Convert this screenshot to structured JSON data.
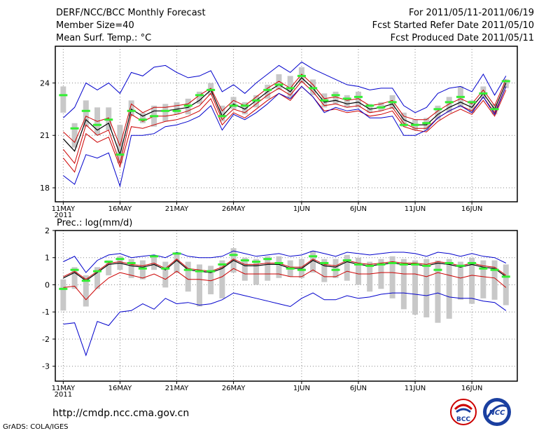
{
  "header": {
    "title": "DERF/NCC/BCC Monthly Forecast",
    "member_size": "Member Size=40",
    "variable": "Mean Surf. Temp.: °C",
    "for_period": "For 2011/05/11-2011/06/19",
    "fcst_started": "Fcst Started Refer Date 2011/05/10",
    "fcst_produced": "Fcst Produced Date 2011/05/11"
  },
  "footer": {
    "url": "http://cmdp.ncc.cma.gov.cn",
    "credit": "GrADS: COLA/IGES",
    "logo_bcc": "BCC",
    "logo_ncc": "NCC"
  },
  "colors": {
    "ensemble_mean": "#000000",
    "spread_inner": "#cc0000",
    "envelope_outer": "#0000cc",
    "observed_bar": "#33ee33",
    "iqr_box": "#c8c8c8",
    "grid": "#888888"
  },
  "chart_data": [
    {
      "type": "line",
      "title": "Mean Surf. Temp.: °C",
      "x_tick_labels": [
        "11MAY",
        "16MAY",
        "21MAY",
        "26MAY",
        "1JUN",
        "6JUN",
        "11JUN",
        "16JUN"
      ],
      "x_tick_days": [
        1,
        6,
        11,
        16,
        22,
        27,
        32,
        37
      ],
      "x_year_label": "2011",
      "ylim": [
        17.2,
        26.1
      ],
      "y_ticks": [
        18,
        21,
        24
      ],
      "x": [
        1,
        2,
        3,
        4,
        5,
        6,
        7,
        8,
        9,
        10,
        11,
        12,
        13,
        14,
        15,
        16,
        17,
        18,
        19,
        20,
        21,
        22,
        23,
        24,
        25,
        26,
        27,
        28,
        29,
        30,
        31,
        32,
        33,
        34,
        35,
        36,
        37,
        38,
        39,
        40
      ],
      "series": [
        {
          "name": "ensemble mean",
          "values": [
            20.8,
            20.1,
            21.9,
            21.3,
            21.7,
            19.9,
            22.5,
            22.1,
            22.4,
            22.4,
            22.5,
            22.6,
            23.0,
            23.6,
            22.1,
            22.8,
            22.5,
            23.0,
            23.5,
            23.9,
            23.5,
            24.3,
            23.7,
            22.9,
            23.0,
            22.8,
            22.9,
            22.5,
            22.6,
            22.8,
            21.9,
            21.6,
            21.6,
            22.2,
            22.6,
            22.9,
            22.6,
            23.4,
            22.5,
            24.0
          ]
        },
        {
          "name": "upper spread",
          "values": [
            21.2,
            20.6,
            22.1,
            21.8,
            22.0,
            20.4,
            22.8,
            22.3,
            22.6,
            22.6,
            22.7,
            22.8,
            23.3,
            23.7,
            22.4,
            23.0,
            22.7,
            23.2,
            23.7,
            24.1,
            23.7,
            24.5,
            23.9,
            23.1,
            23.2,
            23.0,
            23.1,
            22.7,
            22.8,
            23.0,
            22.1,
            21.9,
            21.9,
            22.4,
            22.8,
            23.1,
            22.8,
            23.6,
            22.7,
            24.2
          ]
        },
        {
          "name": "lower spread 1",
          "values": [
            20.2,
            19.4,
            21.6,
            21.0,
            21.3,
            19.4,
            22.2,
            21.8,
            22.1,
            22.1,
            22.2,
            22.4,
            22.7,
            23.4,
            21.9,
            22.5,
            22.3,
            22.8,
            23.3,
            23.7,
            23.3,
            24.1,
            23.5,
            22.7,
            22.8,
            22.6,
            22.7,
            22.3,
            22.4,
            22.6,
            21.7,
            21.4,
            21.4,
            22.0,
            22.4,
            22.7,
            22.4,
            23.2,
            22.3,
            23.8
          ]
        },
        {
          "name": "lower spread 2",
          "values": [
            19.7,
            18.9,
            21.1,
            20.6,
            20.9,
            19.2,
            21.5,
            21.4,
            21.6,
            21.8,
            21.9,
            22.1,
            22.4,
            23.1,
            21.6,
            22.3,
            22.0,
            22.5,
            23.0,
            23.4,
            23.0,
            23.8,
            23.2,
            22.4,
            22.5,
            22.3,
            22.4,
            22.1,
            22.2,
            22.4,
            21.5,
            21.3,
            21.2,
            21.8,
            22.2,
            22.5,
            22.2,
            23.0,
            22.1,
            23.6
          ]
        },
        {
          "name": "ensemble max",
          "values": [
            22.0,
            22.6,
            24.0,
            23.6,
            24.0,
            23.4,
            24.6,
            24.4,
            24.9,
            25.0,
            24.6,
            24.3,
            24.4,
            24.7,
            23.5,
            23.9,
            23.4,
            24.0,
            24.5,
            25.0,
            24.6,
            25.2,
            24.8,
            24.5,
            24.2,
            23.9,
            23.8,
            23.6,
            23.7,
            23.7,
            22.7,
            22.3,
            22.6,
            23.4,
            23.7,
            23.8,
            23.5,
            24.5,
            23.3,
            24.4
          ]
        },
        {
          "name": "ensemble min",
          "values": [
            18.7,
            18.2,
            19.9,
            19.7,
            20.0,
            18.1,
            21.0,
            21.0,
            21.1,
            21.5,
            21.6,
            21.8,
            22.1,
            22.7,
            21.3,
            22.2,
            21.9,
            22.3,
            22.8,
            23.4,
            23.1,
            23.8,
            23.2,
            22.3,
            22.6,
            22.4,
            22.5,
            22.0,
            22.0,
            22.1,
            21.0,
            21.0,
            21.3,
            22.0,
            22.4,
            22.7,
            22.3,
            23.2,
            22.2,
            23.8
          ]
        }
      ],
      "boxes": [
        {
          "x": 1,
          "low": 22.3,
          "high": 23.8
        },
        {
          "x": 2,
          "low": 20.3,
          "high": 21.7
        },
        {
          "x": 3,
          "low": 21.5,
          "high": 23.0
        },
        {
          "x": 4,
          "low": 21.0,
          "high": 22.6
        },
        {
          "x": 5,
          "low": 21.3,
          "high": 22.6
        },
        {
          "x": 6,
          "low": 19.4,
          "high": 21.6
        },
        {
          "x": 7,
          "low": 22.1,
          "high": 23.0
        },
        {
          "x": 8,
          "low": 21.7,
          "high": 22.3
        },
        {
          "x": 9,
          "low": 21.5,
          "high": 22.7
        },
        {
          "x": 10,
          "low": 21.8,
          "high": 22.8
        },
        {
          "x": 11,
          "low": 22.2,
          "high": 22.9
        },
        {
          "x": 12,
          "low": 22.2,
          "high": 23.1
        },
        {
          "x": 13,
          "low": 22.8,
          "high": 23.5
        },
        {
          "x": 14,
          "low": 23.3,
          "high": 24.0
        },
        {
          "x": 15,
          "low": 21.8,
          "high": 22.7
        },
        {
          "x": 16,
          "low": 22.5,
          "high": 23.2
        },
        {
          "x": 17,
          "low": 22.2,
          "high": 22.9
        },
        {
          "x": 18,
          "low": 22.6,
          "high": 23.3
        },
        {
          "x": 19,
          "low": 23.1,
          "high": 23.9
        },
        {
          "x": 20,
          "low": 23.6,
          "high": 24.5
        },
        {
          "x": 21,
          "low": 23.1,
          "high": 24.4
        },
        {
          "x": 22,
          "low": 24.0,
          "high": 24.9
        },
        {
          "x": 23,
          "low": 23.3,
          "high": 24.2
        },
        {
          "x": 24,
          "low": 22.6,
          "high": 23.4
        },
        {
          "x": 25,
          "low": 22.8,
          "high": 23.5
        },
        {
          "x": 26,
          "low": 22.6,
          "high": 23.3
        },
        {
          "x": 27,
          "low": 22.6,
          "high": 23.5
        },
        {
          "x": 28,
          "low": 22.3,
          "high": 22.8
        },
        {
          "x": 29,
          "low": 22.4,
          "high": 22.9
        },
        {
          "x": 30,
          "low": 22.5,
          "high": 23.3
        },
        {
          "x": 31,
          "low": 21.5,
          "high": 22.3
        },
        {
          "x": 32,
          "low": 21.3,
          "high": 21.9
        },
        {
          "x": 33,
          "low": 21.3,
          "high": 22.0
        },
        {
          "x": 34,
          "low": 21.9,
          "high": 22.7
        },
        {
          "x": 35,
          "low": 22.3,
          "high": 23.2
        },
        {
          "x": 36,
          "low": 22.6,
          "high": 23.8
        },
        {
          "x": 37,
          "low": 22.3,
          "high": 23.0
        },
        {
          "x": 38,
          "low": 23.1,
          "high": 23.8
        },
        {
          "x": 39,
          "low": 22.2,
          "high": 22.8
        },
        {
          "x": 40,
          "low": 23.7,
          "high": 24.2
        }
      ],
      "observed": [
        23.3,
        21.4,
        22.4,
        21.6,
        21.9,
        19.9,
        22.4,
        21.9,
        22.1,
        22.4,
        22.4,
        22.7,
        23.3,
        23.6,
        22.1,
        22.7,
        22.7,
        23.0,
        23.6,
        23.9,
        23.7,
        24.4,
        23.7,
        23.0,
        23.3,
        23.1,
        23.2,
        22.7,
        22.6,
        22.9,
        21.6,
        21.6,
        21.7,
        22.5,
        22.9,
        23.2,
        22.9,
        23.4,
        22.5,
        24.1
      ]
    },
    {
      "type": "line",
      "title": "Prec.: log(mm/d)",
      "x_tick_labels": [
        "11MAY",
        "16MAY",
        "21MAY",
        "26MAY",
        "1JUN",
        "6JUN",
        "11JUN",
        "16JUN"
      ],
      "x_tick_days": [
        1,
        6,
        11,
        16,
        22,
        27,
        32,
        37
      ],
      "x_year_label": "2011",
      "ylim": [
        -3.55,
        2.0
      ],
      "y_ticks": [
        -3,
        -2,
        -1,
        0,
        1,
        2
      ],
      "x": [
        1,
        2,
        3,
        4,
        5,
        6,
        7,
        8,
        9,
        10,
        11,
        12,
        13,
        14,
        15,
        16,
        17,
        18,
        19,
        20,
        21,
        22,
        23,
        24,
        25,
        26,
        27,
        28,
        29,
        30,
        31,
        32,
        33,
        34,
        35,
        36,
        37,
        38,
        39,
        40
      ],
      "series": [
        {
          "name": "ensemble mean",
          "values": [
            0.25,
            0.45,
            0.15,
            0.45,
            0.75,
            0.8,
            0.7,
            0.65,
            0.75,
            0.55,
            0.9,
            0.55,
            0.5,
            0.45,
            0.6,
            0.9,
            0.7,
            0.7,
            0.75,
            0.75,
            0.6,
            0.6,
            0.9,
            0.7,
            0.65,
            0.85,
            0.75,
            0.7,
            0.75,
            0.8,
            0.75,
            0.75,
            0.7,
            0.8,
            0.75,
            0.65,
            0.75,
            0.65,
            0.6,
            0.3
          ]
        },
        {
          "name": "upper spread",
          "values": [
            0.3,
            0.5,
            0.2,
            0.5,
            0.8,
            0.85,
            0.75,
            0.7,
            0.8,
            0.6,
            0.95,
            0.6,
            0.55,
            0.5,
            0.65,
            0.95,
            0.75,
            0.75,
            0.8,
            0.8,
            0.65,
            0.65,
            0.95,
            0.75,
            0.7,
            0.9,
            0.8,
            0.75,
            0.8,
            0.85,
            0.8,
            0.8,
            0.75,
            0.85,
            0.8,
            0.7,
            0.8,
            0.7,
            0.65,
            0.35
          ]
        },
        {
          "name": "lower spread",
          "values": [
            -0.1,
            -0.05,
            -0.55,
            -0.1,
            0.25,
            0.45,
            0.35,
            0.25,
            0.4,
            0.2,
            0.5,
            0.2,
            0.2,
            0.15,
            0.3,
            0.6,
            0.4,
            0.4,
            0.4,
            0.4,
            0.3,
            0.3,
            0.55,
            0.3,
            0.3,
            0.5,
            0.4,
            0.4,
            0.45,
            0.45,
            0.4,
            0.4,
            0.3,
            0.45,
            0.35,
            0.25,
            0.35,
            0.3,
            0.25,
            -0.1
          ]
        },
        {
          "name": "ensemble max",
          "values": [
            0.85,
            1.05,
            0.45,
            0.9,
            1.1,
            1.15,
            1.0,
            1.05,
            1.1,
            1.0,
            1.2,
            1.05,
            1.0,
            1.0,
            1.05,
            1.25,
            1.15,
            1.05,
            1.1,
            1.15,
            1.05,
            1.1,
            1.25,
            1.15,
            1.05,
            1.2,
            1.15,
            1.1,
            1.15,
            1.2,
            1.2,
            1.15,
            1.05,
            1.2,
            1.15,
            1.05,
            1.15,
            1.05,
            1.0,
            0.8
          ]
        },
        {
          "name": "ensemble min",
          "values": [
            -1.45,
            -1.4,
            -2.6,
            -1.35,
            -1.5,
            -1.0,
            -0.95,
            -0.7,
            -0.9,
            -0.5,
            -0.7,
            -0.65,
            -0.75,
            -0.7,
            -0.55,
            -0.3,
            -0.4,
            -0.5,
            -0.6,
            -0.7,
            -0.8,
            -0.5,
            -0.3,
            -0.55,
            -0.55,
            -0.4,
            -0.5,
            -0.45,
            -0.35,
            -0.3,
            -0.3,
            -0.35,
            -0.4,
            -0.3,
            -0.45,
            -0.5,
            -0.5,
            -0.6,
            -0.65,
            -0.95
          ]
        }
      ],
      "boxes": [
        {
          "x": 1,
          "low": -0.95,
          "high": 0.2
        },
        {
          "x": 2,
          "low": -0.15,
          "high": 0.65
        },
        {
          "x": 3,
          "low": -0.8,
          "high": 0.35
        },
        {
          "x": 4,
          "low": -0.15,
          "high": 0.65
        },
        {
          "x": 5,
          "low": 0.35,
          "high": 0.9
        },
        {
          "x": 6,
          "low": 0.55,
          "high": 1.05
        },
        {
          "x": 7,
          "low": 0.25,
          "high": 0.95
        },
        {
          "x": 8,
          "low": 0.2,
          "high": 0.9
        },
        {
          "x": 9,
          "low": 0.55,
          "high": 1.1
        },
        {
          "x": 10,
          "low": -0.1,
          "high": 0.85
        },
        {
          "x": 11,
          "low": 0.45,
          "high": 1.2
        },
        {
          "x": 12,
          "low": -0.25,
          "high": 0.85
        },
        {
          "x": 13,
          "low": -0.8,
          "high": 0.75
        },
        {
          "x": 14,
          "low": -0.35,
          "high": 0.7
        },
        {
          "x": 15,
          "low": -0.5,
          "high": 0.9
        },
        {
          "x": 16,
          "low": 0.45,
          "high": 1.35
        },
        {
          "x": 17,
          "low": 0.15,
          "high": 1.0
        },
        {
          "x": 18,
          "low": 0.0,
          "high": 0.95
        },
        {
          "x": 19,
          "low": 0.15,
          "high": 1.05
        },
        {
          "x": 20,
          "low": 0.25,
          "high": 1.05
        },
        {
          "x": 21,
          "low": 0.3,
          "high": 0.9
        },
        {
          "x": 22,
          "low": 0.25,
          "high": 0.95
        },
        {
          "x": 23,
          "low": 0.45,
          "high": 1.25
        },
        {
          "x": 24,
          "low": 0.1,
          "high": 0.95
        },
        {
          "x": 25,
          "low": 0.25,
          "high": 0.95
        },
        {
          "x": 26,
          "low": 0.15,
          "high": 1.1
        },
        {
          "x": 27,
          "low": 0.0,
          "high": 1.0
        },
        {
          "x": 28,
          "low": -0.25,
          "high": 0.85
        },
        {
          "x": 29,
          "low": -0.15,
          "high": 0.95
        },
        {
          "x": 30,
          "low": -0.5,
          "high": 1.05
        },
        {
          "x": 31,
          "low": -0.9,
          "high": 0.95
        },
        {
          "x": 32,
          "low": -1.1,
          "high": 0.9
        },
        {
          "x": 33,
          "low": -1.2,
          "high": 0.95
        },
        {
          "x": 34,
          "low": -1.4,
          "high": 0.9
        },
        {
          "x": 35,
          "low": -1.25,
          "high": 0.95
        },
        {
          "x": 36,
          "low": -0.55,
          "high": 0.85
        },
        {
          "x": 37,
          "low": -0.7,
          "high": 1.0
        },
        {
          "x": 38,
          "low": -0.5,
          "high": 0.9
        },
        {
          "x": 39,
          "low": -0.55,
          "high": 0.9
        },
        {
          "x": 40,
          "low": -0.75,
          "high": 0.75
        }
      ],
      "observed": [
        -0.15,
        0.55,
        0.15,
        0.5,
        0.85,
        0.95,
        0.8,
        0.6,
        1.05,
        0.6,
        1.15,
        0.55,
        0.5,
        0.5,
        0.75,
        1.1,
        0.9,
        0.85,
        0.95,
        0.8,
        0.6,
        0.55,
        1.05,
        0.8,
        0.55,
        0.9,
        0.75,
        0.7,
        0.75,
        0.8,
        0.75,
        0.75,
        0.7,
        0.55,
        0.8,
        0.7,
        0.8,
        0.6,
        0.55,
        0.3
      ]
    }
  ]
}
